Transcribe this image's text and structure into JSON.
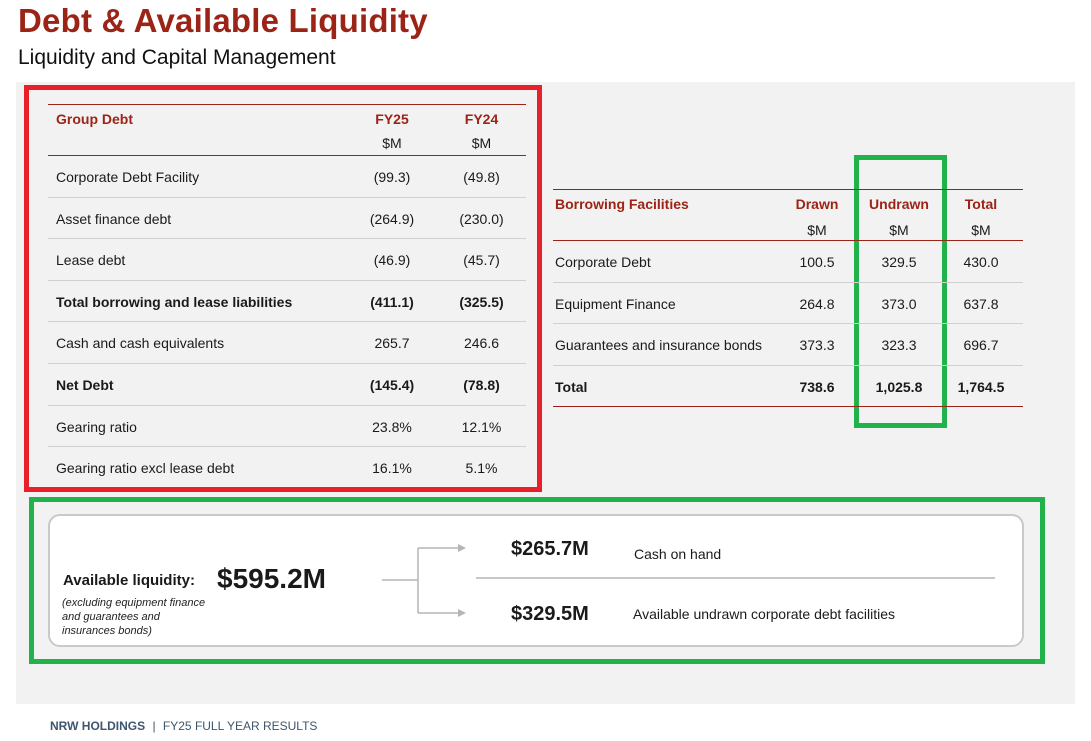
{
  "header": {
    "title": "Debt & Available Liquidity",
    "subtitle": "Liquidity and Capital Management"
  },
  "group_debt": {
    "heading": "Group Debt",
    "columns": [
      "FY25",
      "FY24"
    ],
    "units": [
      "$M",
      "$M"
    ],
    "rows": [
      {
        "label": "Corporate Debt Facility",
        "fy25": "(99.3)",
        "fy24": "(49.8)",
        "bold": false
      },
      {
        "label": "Asset finance debt",
        "fy25": "(264.9)",
        "fy24": "(230.0)",
        "bold": false
      },
      {
        "label": "Lease debt",
        "fy25": "(46.9)",
        "fy24": "(45.7)",
        "bold": false
      },
      {
        "label": "Total borrowing and lease liabilities",
        "fy25": "(411.1)",
        "fy24": "(325.5)",
        "bold": true
      },
      {
        "label": "Cash and cash equivalents",
        "fy25": "265.7",
        "fy24": "246.6",
        "bold": false
      },
      {
        "label": "Net Debt",
        "fy25": "(145.4)",
        "fy24": "(78.8)",
        "bold": true
      },
      {
        "label": "Gearing ratio",
        "fy25": "23.8%",
        "fy24": "12.1%",
        "bold": false
      },
      {
        "label": "Gearing ratio excl lease debt",
        "fy25": "16.1%",
        "fy24": "5.1%",
        "bold": false
      }
    ]
  },
  "borrowing_facilities": {
    "heading": "Borrowing Facilities",
    "columns": [
      "Drawn",
      "Undrawn",
      "Total"
    ],
    "units": [
      "$M",
      "$M",
      "$M"
    ],
    "rows": [
      {
        "label": "Corporate Debt",
        "drawn": "100.5",
        "undrawn": "329.5",
        "total": "430.0",
        "bold": false
      },
      {
        "label": "Equipment Finance",
        "drawn": "264.8",
        "undrawn": "373.0",
        "total": "637.8",
        "bold": false
      },
      {
        "label": "Guarantees and insurance bonds",
        "drawn": "373.3",
        "undrawn": "323.3",
        "total": "696.7",
        "bold": false
      },
      {
        "label": "Total",
        "drawn": "738.6",
        "undrawn": "1,025.8",
        "total": "1,764.5",
        "bold": true
      }
    ]
  },
  "liquidity": {
    "label": "Available liquidity:",
    "note": "(excluding equipment finance and guarantees and insurances bonds)",
    "total": "$595.2M",
    "items": [
      {
        "amount": "$265.7M",
        "description": "Cash on hand"
      },
      {
        "amount": "$329.5M",
        "description": "Available undrawn corporate debt facilities"
      }
    ]
  },
  "footer": {
    "company": "NRW HOLDINGS",
    "separator": "|",
    "text": "FY25 FULL YEAR RESULTS"
  },
  "colors": {
    "brand_red": "#9b2416",
    "highlight_red": "#e8202a",
    "highlight_green": "#22b24c",
    "panel_bg": "#f2f2f2"
  }
}
